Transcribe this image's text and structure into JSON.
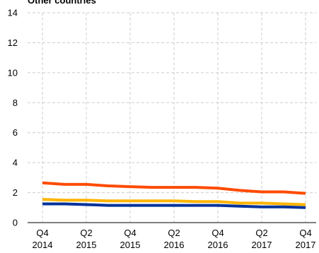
{
  "chart_data": {
    "type": "line",
    "title": "Other countries",
    "xlabel": "",
    "ylabel": "",
    "ylim": [
      0,
      14
    ],
    "yticks": [
      0,
      2,
      4,
      6,
      8,
      10,
      12,
      14
    ],
    "grid": true,
    "x": [
      "Q4 2014",
      "Q1 2015",
      "Q2 2015",
      "Q3 2015",
      "Q4 2015",
      "Q1 2016",
      "Q2 2016",
      "Q3 2016",
      "Q4 2016",
      "Q1 2017",
      "Q2 2017",
      "Q3 2017",
      "Q4 2017"
    ],
    "xtick_labels": [
      {
        "line1": "Q4",
        "line2": "2014"
      },
      {
        "line1": "Q2",
        "line2": "2015"
      },
      {
        "line1": "Q4",
        "line2": "2015"
      },
      {
        "line1": "Q2",
        "line2": "2016"
      },
      {
        "line1": "Q4",
        "line2": "2016"
      },
      {
        "line1": "Q2",
        "line2": "2017"
      },
      {
        "line1": "Q4",
        "line2": "2017"
      }
    ],
    "series": [
      {
        "color": "#ff4b00",
        "values": [
          2.65,
          2.55,
          2.55,
          2.45,
          2.4,
          2.35,
          2.35,
          2.35,
          2.3,
          2.15,
          2.05,
          2.05,
          1.95
        ]
      },
      {
        "color": "#ffb400",
        "values": [
          1.55,
          1.5,
          1.5,
          1.45,
          1.45,
          1.45,
          1.45,
          1.4,
          1.4,
          1.3,
          1.3,
          1.25,
          1.2
        ]
      },
      {
        "color": "#003299",
        "values": [
          1.25,
          1.25,
          1.2,
          1.15,
          1.15,
          1.15,
          1.15,
          1.15,
          1.15,
          1.1,
          1.05,
          1.05,
          1.0
        ]
      }
    ]
  }
}
